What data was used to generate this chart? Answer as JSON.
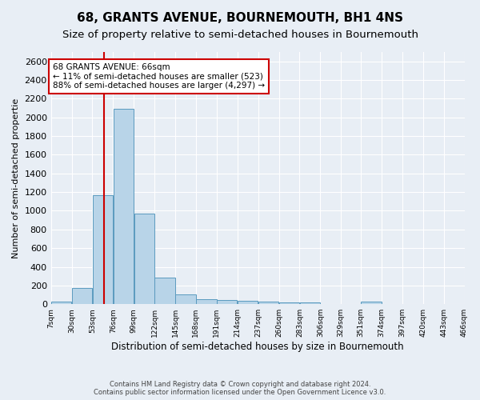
{
  "title": "68, GRANTS AVENUE, BOURNEMOUTH, BH1 4NS",
  "subtitle": "Size of property relative to semi-detached houses in Bournemouth",
  "xlabel": "Distribution of semi-detached houses by size in Bournemouth",
  "ylabel": "Number of semi-detached propertie",
  "footnote1": "Contains HM Land Registry data © Crown copyright and database right 2024.",
  "footnote2": "Contains public sector information licensed under the Open Government Licence v3.0.",
  "bar_edges": [
    7,
    30,
    53,
    76,
    99,
    122,
    145,
    168,
    191,
    214,
    237,
    260,
    283,
    306,
    329,
    351,
    374,
    397,
    420,
    443,
    466
  ],
  "bar_heights": [
    25,
    170,
    1165,
    2090,
    970,
    285,
    105,
    50,
    45,
    35,
    25,
    20,
    20,
    0,
    0,
    25,
    0,
    0,
    0,
    0
  ],
  "bar_color": "#b8d4e8",
  "bar_edge_color": "#5a9abf",
  "property_size": 66,
  "vline_color": "#cc0000",
  "annotation_line1": "68 GRANTS AVENUE: 66sqm",
  "annotation_line2": "← 11% of semi-detached houses are smaller (523)",
  "annotation_line3": "88% of semi-detached houses are larger (4,297) →",
  "annotation_box_color": "#ffffff",
  "annotation_box_edge": "#cc0000",
  "ylim": [
    0,
    2700
  ],
  "yticks": [
    0,
    200,
    400,
    600,
    800,
    1000,
    1200,
    1400,
    1600,
    1800,
    2000,
    2200,
    2400,
    2600
  ],
  "tick_labels": [
    "7sqm",
    "30sqm",
    "53sqm",
    "76sqm",
    "99sqm",
    "122sqm",
    "145sqm",
    "168sqm",
    "191sqm",
    "214sqm",
    "237sqm",
    "260sqm",
    "283sqm",
    "306sqm",
    "329sqm",
    "351sqm",
    "374sqm",
    "397sqm",
    "420sqm",
    "443sqm",
    "466sqm"
  ],
  "bg_color": "#e8eef5",
  "grid_color": "#ffffff",
  "title_fontsize": 11,
  "subtitle_fontsize": 9.5,
  "ylabel_fontsize": 8,
  "xlabel_fontsize": 8.5,
  "annotation_fontsize": 7.5,
  "ytick_fontsize": 8,
  "xtick_fontsize": 6.5
}
